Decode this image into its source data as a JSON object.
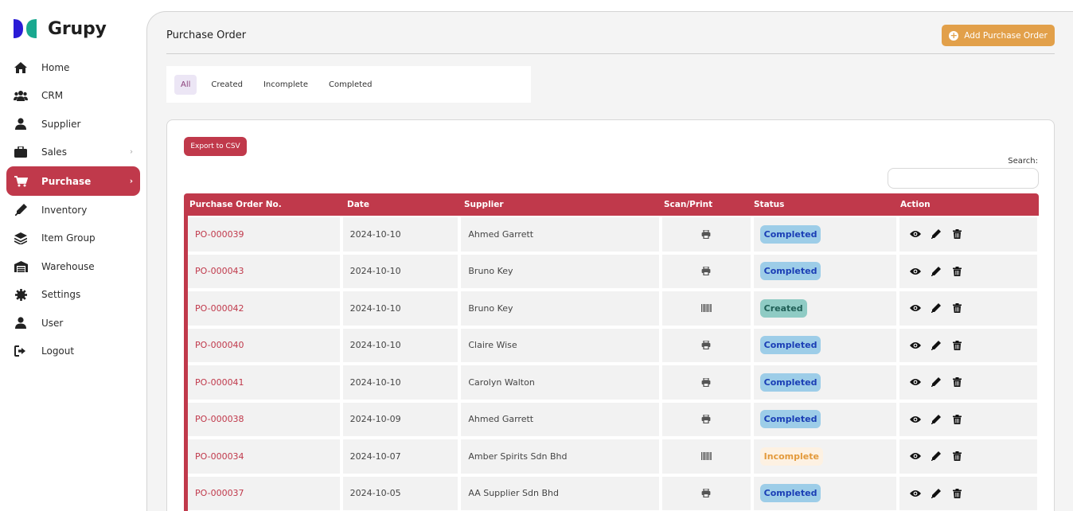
{
  "brand": {
    "name": "Grupy",
    "primary": "#c0394b",
    "accent": "#e2a04a",
    "logo_blue": "#2a1bd6",
    "logo_teal": "#19a88f"
  },
  "sidebar": {
    "items": [
      {
        "label": "Home",
        "icon": "home-icon"
      },
      {
        "label": "CRM",
        "icon": "users-icon"
      },
      {
        "label": "Supplier",
        "icon": "user-icon"
      },
      {
        "label": "Sales",
        "icon": "sales-icon",
        "chevron": "›"
      },
      {
        "label": "Purchase",
        "icon": "cart-icon",
        "chevron": "›",
        "active": true
      },
      {
        "label": "Inventory",
        "icon": "inventory-icon"
      },
      {
        "label": "Item Group",
        "icon": "layers-icon"
      },
      {
        "label": "Warehouse",
        "icon": "warehouse-icon"
      },
      {
        "label": "Settings",
        "icon": "gear-icon"
      },
      {
        "label": "User",
        "icon": "user-icon"
      },
      {
        "label": "Logout",
        "icon": "logout-icon"
      }
    ]
  },
  "header": {
    "title": "Purchase Order",
    "add_button": "Add Purchase Order",
    "add_icon": "+"
  },
  "tabs": [
    {
      "label": "All",
      "active": true
    },
    {
      "label": "Created"
    },
    {
      "label": "Incomplete"
    },
    {
      "label": "Completed"
    }
  ],
  "table": {
    "export_label": "Export to CSV",
    "search_label": "Search:",
    "search_value": "",
    "columns": [
      "Purchase Order No.",
      "Date",
      "Supplier",
      "Scan/Print",
      "Status",
      "Action"
    ],
    "rows": [
      {
        "po": "PO-000039",
        "date": "2024-10-10",
        "supplier": "Ahmed Garrett",
        "scan": "print-icon",
        "status": "Completed"
      },
      {
        "po": "PO-000043",
        "date": "2024-10-10",
        "supplier": "Bruno Key",
        "scan": "print-icon",
        "status": "Completed"
      },
      {
        "po": "PO-000042",
        "date": "2024-10-10",
        "supplier": "Bruno Key",
        "scan": "barcode-icon",
        "status": "Created"
      },
      {
        "po": "PO-000040",
        "date": "2024-10-10",
        "supplier": "Claire Wise",
        "scan": "print-icon",
        "status": "Completed"
      },
      {
        "po": "PO-000041",
        "date": "2024-10-10",
        "supplier": "Carolyn Walton",
        "scan": "print-icon",
        "status": "Completed"
      },
      {
        "po": "PO-000038",
        "date": "2024-10-09",
        "supplier": "Ahmed Garrett",
        "scan": "print-icon",
        "status": "Completed"
      },
      {
        "po": "PO-000034",
        "date": "2024-10-07",
        "supplier": "Amber Spirits Sdn Bhd",
        "scan": "barcode-icon",
        "status": "Incomplete"
      },
      {
        "po": "PO-000037",
        "date": "2024-10-05",
        "supplier": "AA Supplier Sdn Bhd",
        "scan": "print-icon",
        "status": "Completed"
      }
    ],
    "actions": [
      "eye-icon",
      "pencil-icon",
      "trash-icon"
    ]
  }
}
